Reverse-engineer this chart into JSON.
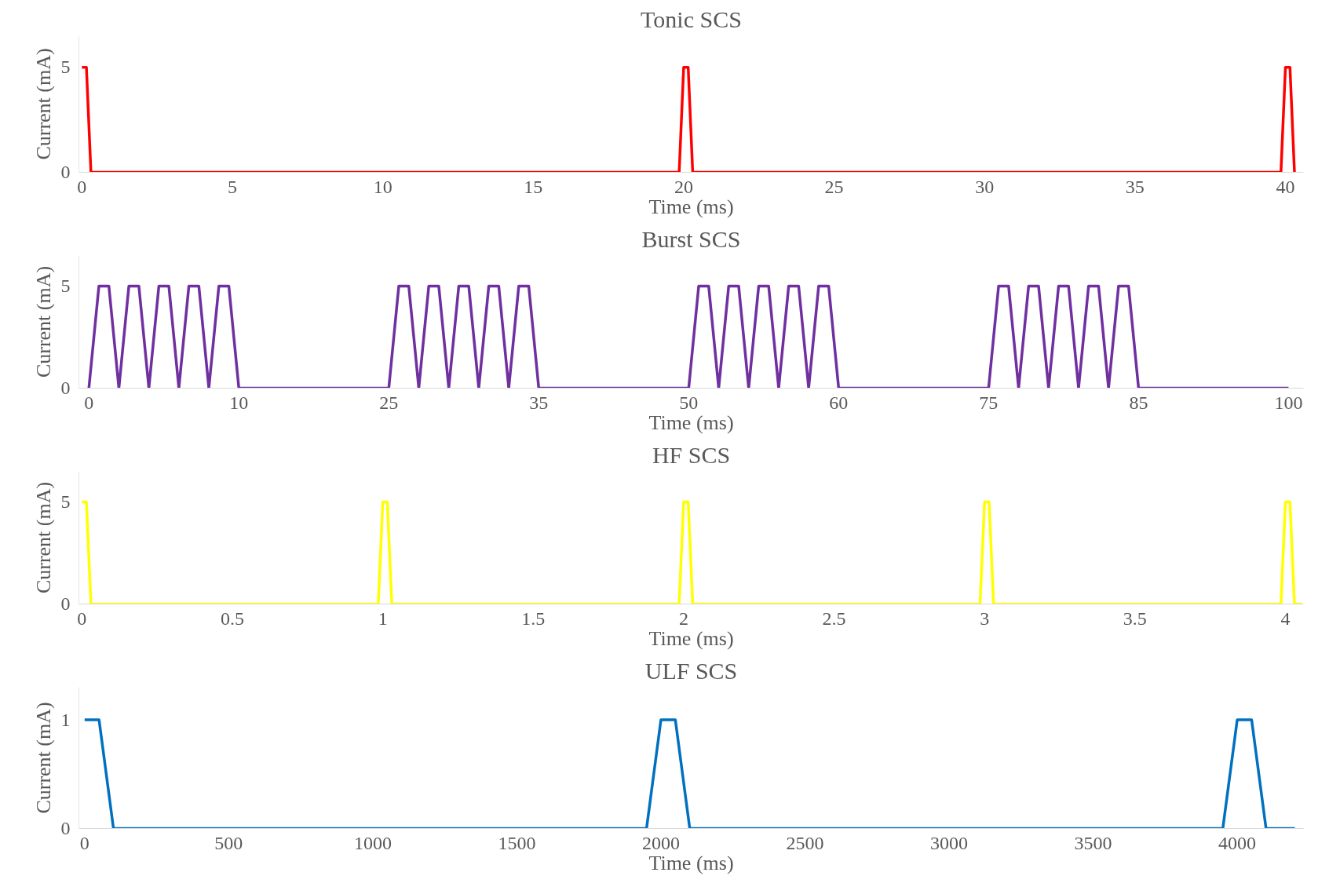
{
  "chart_data": [
    {
      "type": "line",
      "title": "Tonic SCS",
      "xlabel": "Time (ms)",
      "ylabel": "Current (mA)",
      "x": [
        0,
        0.15,
        0.3,
        19.85,
        20,
        20.15,
        20.3,
        39.85,
        40,
        40.15,
        40.3
      ],
      "series": [
        {
          "color": "#ff0000",
          "values": [
            5,
            5,
            0,
            0,
            5,
            5,
            0,
            0,
            5,
            5,
            0
          ]
        }
      ],
      "xlim": [
        -0.1,
        40.6
      ],
      "xticks": [
        0,
        5,
        10,
        15,
        20,
        25,
        30,
        35,
        40
      ],
      "ylim": [
        0,
        6.5
      ],
      "yticks": [
        0,
        5
      ],
      "grid": false
    },
    {
      "type": "line",
      "title": "Burst SCS",
      "xlabel": "Time (ms)",
      "ylabel": "Current (mA)",
      "categories": [
        "0",
        null,
        null,
        null,
        null,
        null,
        null,
        null,
        null,
        null,
        null,
        null,
        null,
        null,
        null,
        "10",
        null,
        null,
        null,
        null,
        null,
        null,
        null,
        null,
        null,
        null,
        null,
        null,
        null,
        null,
        "25",
        null,
        null,
        null,
        null,
        null,
        null,
        null,
        null,
        null,
        null,
        null,
        null,
        null,
        null,
        "35",
        null,
        null,
        null,
        null,
        null,
        null,
        null,
        null,
        null,
        null,
        null,
        null,
        null,
        null,
        "50",
        null,
        null,
        null,
        null,
        null,
        null,
        null,
        null,
        null,
        null,
        null,
        null,
        null,
        null,
        "60",
        null,
        null,
        null,
        null,
        null,
        null,
        null,
        null,
        null,
        null,
        null,
        null,
        null,
        null,
        "75",
        null,
        null,
        null,
        null,
        null,
        null,
        null,
        null,
        null,
        null,
        null,
        null,
        null,
        null,
        "85",
        null,
        null,
        null,
        null,
        null,
        null,
        null,
        null,
        null,
        null,
        null,
        null,
        null,
        null,
        "100"
      ],
      "series": [
        {
          "color": "#7030a0",
          "values": [
            0,
            5,
            5,
            0,
            5,
            5,
            0,
            5,
            5,
            0,
            5,
            5,
            0,
            5,
            5,
            0,
            0,
            0,
            0,
            0,
            0,
            0,
            0,
            0,
            0,
            0,
            0,
            0,
            0,
            0,
            0,
            5,
            5,
            0,
            5,
            5,
            0,
            5,
            5,
            0,
            5,
            5,
            0,
            5,
            5,
            0,
            0,
            0,
            0,
            0,
            0,
            0,
            0,
            0,
            0,
            0,
            0,
            0,
            0,
            0,
            0,
            5,
            5,
            0,
            5,
            5,
            0,
            5,
            5,
            0,
            5,
            5,
            0,
            5,
            5,
            0,
            0,
            0,
            0,
            0,
            0,
            0,
            0,
            0,
            0,
            0,
            0,
            0,
            0,
            0,
            0,
            5,
            5,
            0,
            5,
            5,
            0,
            5,
            5,
            0,
            5,
            5,
            0,
            5,
            5,
            0,
            0,
            0,
            0,
            0,
            0,
            0,
            0,
            0,
            0,
            0,
            0,
            0,
            0,
            0,
            0
          ]
        }
      ],
      "ylim": [
        0,
        6.5
      ],
      "yticks": [
        0,
        5
      ],
      "grid": false
    },
    {
      "type": "line",
      "title": "HF SCS",
      "xlabel": "Time (ms)",
      "ylabel": "Current (mA)",
      "x": [
        0,
        0.015,
        0.03,
        0.985,
        1,
        1.015,
        1.03,
        1.985,
        2,
        2.015,
        2.03,
        2.985,
        3,
        3.015,
        3.03,
        3.985,
        4,
        4.015,
        4.03,
        4.055
      ],
      "series": [
        {
          "color": "#ffff00",
          "values": [
            5,
            5,
            0,
            0,
            5,
            5,
            0,
            0,
            5,
            5,
            0,
            0,
            5,
            5,
            0,
            0,
            5,
            5,
            0,
            0
          ]
        }
      ],
      "xlim": [
        -0.01,
        4.06
      ],
      "xticks": [
        0,
        {
          "value": 0.5,
          "label": "0.5"
        },
        1,
        {
          "value": 1.5,
          "label": "1.5"
        },
        2,
        {
          "value": 2.5,
          "label": "2.5"
        },
        3,
        {
          "value": 3.5,
          "label": "3.5"
        },
        4
      ],
      "ylim": [
        0,
        6.5
      ],
      "yticks": [
        0,
        5
      ],
      "grid": false
    },
    {
      "type": "line",
      "title": "ULF SCS",
      "xlabel": "Time (ms)",
      "ylabel": "Current (mA)",
      "x": [
        0,
        50,
        100,
        1950,
        2000,
        2050,
        2100,
        3950,
        4000,
        4050,
        4100,
        4200
      ],
      "series": [
        {
          "color": "#0070c0",
          "values": [
            1,
            1,
            0,
            0,
            1,
            1,
            0,
            0,
            1,
            1,
            0,
            0
          ]
        }
      ],
      "xlim": [
        -20,
        4230
      ],
      "xticks": [
        0,
        500,
        1000,
        1500,
        2000,
        2500,
        3000,
        3500,
        4000
      ],
      "ylim": [
        0,
        1.3
      ],
      "yticks": [
        0,
        1
      ],
      "grid": false
    }
  ]
}
